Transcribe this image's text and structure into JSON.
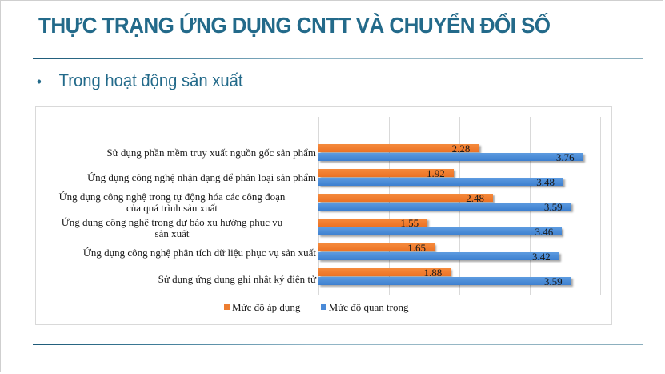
{
  "slide": {
    "title": "THỰC TRẠNG ỨNG DỤNG CNTT VÀ CHUYỂN ĐỔI SỐ",
    "bullet_symbol": "•",
    "bullet_text": "Trong hoạt động sản xuất"
  },
  "colors": {
    "title": "#236a8a",
    "series_apply": "#ed7d31",
    "series_importance": "#4a8ad8"
  },
  "chart_data": {
    "type": "bar",
    "orientation": "horizontal",
    "title": "",
    "xlabel": "",
    "ylabel": "",
    "xlim": [
      0,
      4
    ],
    "gridlines": [
      0,
      1,
      2,
      3,
      4
    ],
    "grid": true,
    "axis_tick_labels_shown": false,
    "legend_position": "bottom",
    "categories": [
      "Sử dụng phần mềm truy xuất nguồn gốc sản phẩm",
      "Ứng dụng công nghệ nhận dạng để phân loại sản phẩm",
      "Ứng dụng công nghệ trong tự động hóa các công đoạn của quá trình sản xuất",
      "Ứng dụng công nghệ trong dự báo xu hướng phục vụ sản xuất",
      "Ứng dụng công nghệ phân tích dữ liệu phục vụ sản xuất",
      "Sử dụng ứng dụng ghi nhật ký điện tử"
    ],
    "series": [
      {
        "name": "Mức độ áp dụng",
        "color": "#ed7d31",
        "values": [
          2.28,
          1.92,
          2.48,
          1.55,
          1.65,
          1.88
        ]
      },
      {
        "name": "Mức độ quan trọng",
        "color": "#4a8ad8",
        "values": [
          3.76,
          3.48,
          3.59,
          3.46,
          3.42,
          3.59
        ]
      }
    ]
  },
  "chart_labels": {
    "cat0": "Sử dụng phần mềm truy xuất nguồn gốc sản phẩm",
    "cat1": "Ứng dụng công nghệ nhận dạng để phân loại sản phẩm",
    "cat2a": "Ứng dụng công nghệ trong tự động hóa các công đoạn",
    "cat2b": "của quá trình sản xuất",
    "cat3a": "Ứng dụng công nghệ trong dự báo xu hướng phục vụ",
    "cat3b": "sản xuất",
    "cat4": "Ứng dụng công nghệ phân tích dữ liệu phục vụ sản xuất",
    "cat5": "Sử dụng ứng dụng ghi nhật ký điện tử"
  },
  "legend": {
    "apply": "Mức độ áp dụng",
    "importance": "Mức độ quan trọng"
  }
}
